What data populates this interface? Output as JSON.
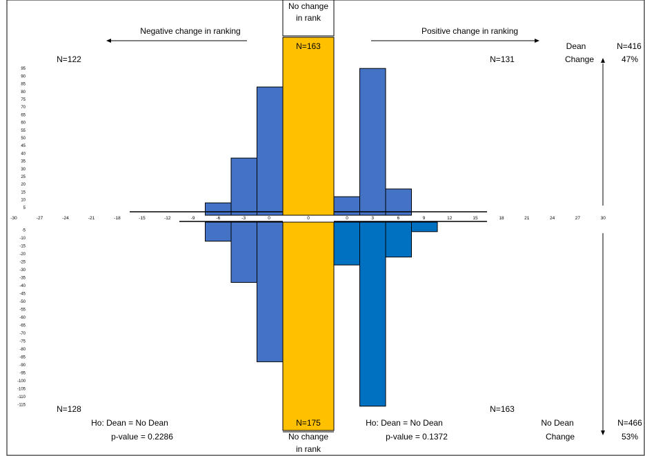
{
  "chart_data": {
    "type": "bar",
    "header": {
      "negative": "Negative change in ranking",
      "positive": "Positive change in ranking",
      "no_change_top": [
        "No change",
        "in rank"
      ],
      "no_change_bottom": [
        "No change",
        "in rank"
      ]
    },
    "y_ticks_upper": [
      95,
      90,
      85,
      80,
      75,
      70,
      65,
      60,
      55,
      50,
      45,
      40,
      35,
      30,
      25,
      20,
      15,
      10,
      5
    ],
    "y_ticks_lower": [
      -5,
      -10,
      -15,
      -20,
      -25,
      -30,
      -35,
      -40,
      -45,
      -50,
      -55,
      -60,
      -65,
      -70,
      -75,
      -80,
      -85,
      -90,
      -95,
      -100,
      -105,
      -110,
      -115
    ],
    "x_ticks_outer_left": [
      "-30",
      "-27",
      "-24",
      "-21",
      "-18"
    ],
    "x_ticks_inner_left": [
      "-15",
      "-12",
      "-9",
      "-6",
      "-3",
      "0"
    ],
    "x_ticks_center": [
      "0"
    ],
    "x_ticks_inner_right": [
      "0",
      "3",
      "6",
      "9",
      "12",
      "15"
    ],
    "x_ticks_outer_right": [
      "18",
      "21",
      "24",
      "27",
      "30"
    ],
    "series": [
      {
        "name": "Dean Change",
        "side": "negative",
        "bins": [
          "-6",
          "-3",
          "0"
        ],
        "values": [
          8,
          37,
          83
        ]
      },
      {
        "name": "Dean Change",
        "side": "positive",
        "bins": [
          "0",
          "3",
          "6"
        ],
        "values": [
          12,
          95,
          17
        ]
      },
      {
        "name": "No Dean Change",
        "side": "negative",
        "bins": [
          "-6",
          "-3",
          "0"
        ],
        "values": [
          -12,
          -38,
          -88
        ]
      },
      {
        "name": "No Dean Change",
        "side": "positive",
        "bins": [
          "0",
          "3",
          "6",
          "9"
        ],
        "values": [
          -27,
          -116,
          -22,
          -6
        ]
      }
    ],
    "no_change_bar": {
      "upper": 163,
      "lower": -175
    },
    "counts": {
      "top_left": "N=122",
      "top_center": "N=163",
      "top_right": "N=131",
      "bottom_left": "N=128",
      "bottom_center": "N=175",
      "bottom_right": "N=163"
    },
    "right_panel": {
      "dean": [
        "Dean",
        "Change"
      ],
      "no_dean": [
        "No Dean",
        "Change"
      ],
      "dean_n": "N=416",
      "dean_pct": "47%",
      "no_dean_n": "N=466",
      "no_dean_pct": "53%"
    },
    "tests": {
      "left_ho": "Ho: Dean = No Dean",
      "left_p": "p-value = 0.2286",
      "right_ho": "Ho: Dean = No Dean",
      "right_p": "p-value = 0.1372"
    },
    "colors": {
      "upper_bar": "#4472C4",
      "lower_bar_left": "#4472C4",
      "lower_bar_right": "#0070C0",
      "no_change": "#FFC000"
    }
  }
}
